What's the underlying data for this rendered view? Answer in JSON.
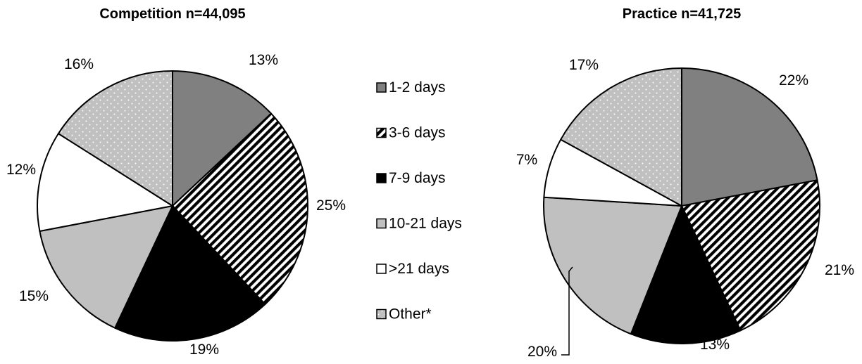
{
  "legend": [
    "1-2 days",
    "3-6 days",
    "7-9 days",
    "10-21 days",
    ">21 days",
    "Other*"
  ],
  "chart_data": [
    {
      "type": "pie",
      "title": "Competition n=44,095",
      "categories": [
        "1-2 days",
        "3-6 days",
        "7-9 days",
        "10-21 days",
        ">21 days",
        "Other*"
      ],
      "values": [
        13,
        25,
        19,
        15,
        12,
        16
      ],
      "labels": [
        "13%",
        "25%",
        "19%",
        "15%",
        "12%",
        "16%"
      ]
    },
    {
      "type": "pie",
      "title": "Practice n=41,725",
      "categories": [
        "1-2 days",
        "3-6 days",
        "7-9 days",
        "10-21 days",
        ">21 days",
        "Other*"
      ],
      "values": [
        22,
        21,
        13,
        20,
        7,
        17
      ],
      "labels": [
        "22%",
        "21%",
        "13%",
        "20%",
        "7%",
        "17%"
      ]
    }
  ],
  "colors": {
    "1-2 days": "#808080",
    "3-6 days": "diagonal-stripes",
    "7-9 days": "#000000",
    "10-21 days": "#c0c0c0",
    ">21 days": "#ffffff",
    "Other*": "#c0c0c0-dots"
  }
}
